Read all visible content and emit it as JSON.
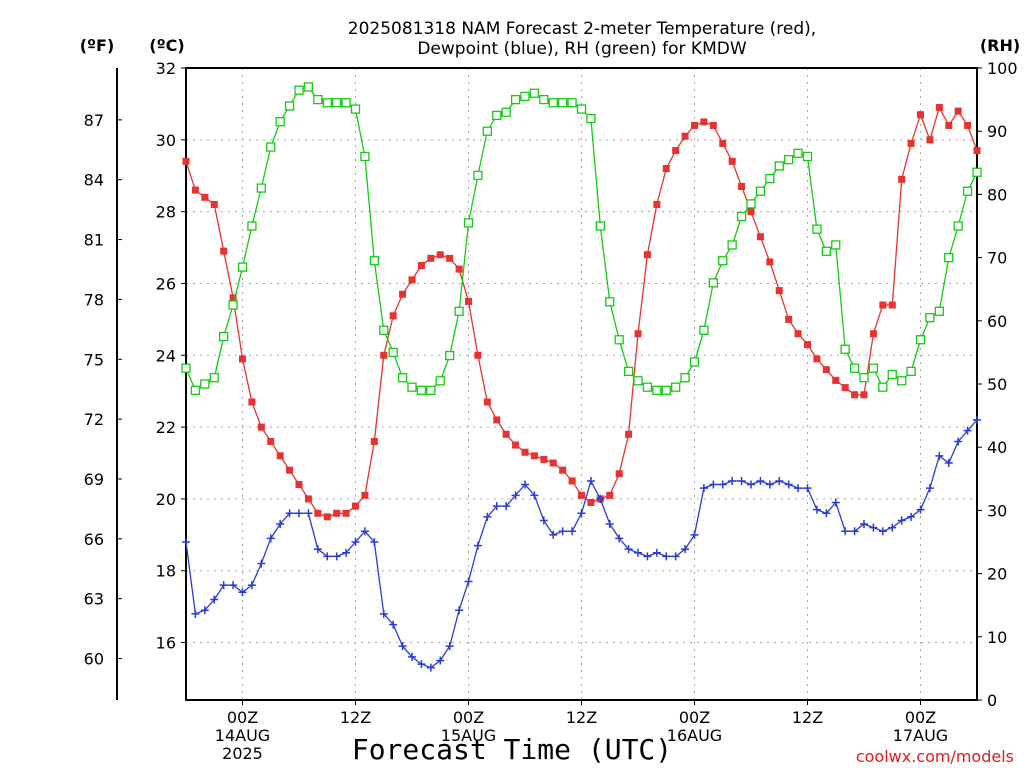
{
  "chart_data": {
    "type": "line",
    "title_lines": [
      "2025081318 NAM Forecast 2-meter Temperature (red),",
      "Dewpoint (blue), RH (green) for KMDW"
    ],
    "xlabel": "Forecast Time (UTC)",
    "credit": "coolwx.com/models",
    "unit_labels": {
      "fahrenheit": "(ºF)",
      "celsius": "(ºC)",
      "rh": "(RH)"
    },
    "x_range_hours": [
      0,
      84
    ],
    "x_step_hours": 1,
    "x_ticks": [
      {
        "hour": 6,
        "lines": [
          "00Z",
          "14AUG",
          "2025"
        ]
      },
      {
        "hour": 18,
        "lines": [
          "12Z"
        ]
      },
      {
        "hour": 30,
        "lines": [
          "00Z",
          "15AUG"
        ]
      },
      {
        "hour": 42,
        "lines": [
          "12Z"
        ]
      },
      {
        "hour": 54,
        "lines": [
          "00Z",
          "16AUG"
        ]
      },
      {
        "hour": 66,
        "lines": [
          "12Z"
        ]
      },
      {
        "hour": 78,
        "lines": [
          "00Z",
          "17AUG"
        ]
      }
    ],
    "y_celsius": {
      "range": [
        14.4,
        32
      ],
      "ticks": [
        16,
        18,
        20,
        22,
        24,
        26,
        28,
        30,
        32
      ]
    },
    "y_fahrenheit": {
      "ticks": [
        60,
        63,
        66,
        69,
        72,
        75,
        78,
        81,
        84,
        87
      ]
    },
    "y_rh": {
      "range": [
        0,
        100
      ],
      "ticks": [
        0,
        10,
        20,
        30,
        40,
        50,
        60,
        70,
        80,
        90,
        100
      ]
    },
    "grid": "dotted",
    "colors": {
      "temperature": "#e8322f",
      "dewpoint": "#2a3bd6",
      "rh": "#11cc11",
      "credit": "#e31a1c"
    },
    "series": [
      {
        "name": "Temperature",
        "axis": "celsius",
        "marker": "filled-square",
        "values": [
          29.4,
          28.6,
          28.4,
          28.2,
          26.9,
          25.6,
          23.9,
          22.7,
          22.0,
          21.6,
          21.2,
          20.8,
          20.4,
          20.0,
          19.6,
          19.5,
          19.6,
          19.6,
          19.8,
          20.1,
          21.6,
          24.0,
          25.1,
          25.7,
          26.1,
          26.5,
          26.7,
          26.8,
          26.7,
          26.4,
          25.5,
          24.0,
          22.7,
          22.2,
          21.8,
          21.5,
          21.3,
          21.2,
          21.1,
          21.0,
          20.8,
          20.5,
          20.1,
          19.9,
          20.0,
          20.1,
          20.7,
          21.8,
          24.6,
          26.8,
          28.2,
          29.2,
          29.7,
          30.1,
          30.4,
          30.5,
          30.4,
          29.9,
          29.4,
          28.7,
          28.0,
          27.3,
          26.6,
          25.8,
          25.0,
          24.6,
          24.3,
          23.9,
          23.6,
          23.3,
          23.1,
          22.9,
          22.9,
          24.6,
          25.4,
          25.4,
          28.9,
          29.9,
          30.7,
          30.0,
          30.9,
          30.4,
          30.8,
          30.4,
          29.7
        ]
      },
      {
        "name": "Dewpoint",
        "axis": "celsius",
        "marker": "plus",
        "values": [
          18.8,
          16.8,
          16.9,
          17.2,
          17.6,
          17.6,
          17.4,
          17.6,
          18.2,
          18.9,
          19.3,
          19.6,
          19.6,
          19.6,
          18.6,
          18.4,
          18.4,
          18.5,
          18.8,
          19.1,
          18.8,
          16.8,
          16.5,
          15.9,
          15.6,
          15.4,
          15.3,
          15.5,
          15.9,
          16.9,
          17.7,
          18.7,
          19.5,
          19.8,
          19.8,
          20.1,
          20.4,
          20.1,
          19.4,
          19.0,
          19.1,
          19.1,
          19.6,
          20.5,
          20.0,
          19.3,
          18.9,
          18.6,
          18.5,
          18.4,
          18.5,
          18.4,
          18.4,
          18.6,
          19.0,
          20.3,
          20.4,
          20.4,
          20.5,
          20.5,
          20.4,
          20.5,
          20.4,
          20.5,
          20.4,
          20.3,
          20.3,
          19.7,
          19.6,
          19.9,
          19.1,
          19.1,
          19.3,
          19.2,
          19.1,
          19.2,
          19.4,
          19.5,
          19.7,
          20.3,
          21.2,
          21.0,
          21.6,
          21.9,
          22.2
        ]
      },
      {
        "name": "RH",
        "axis": "rh",
        "marker": "open-square",
        "values": [
          52.5,
          49.0,
          50.0,
          51.0,
          57.5,
          62.5,
          68.5,
          75.0,
          81.0,
          87.5,
          91.5,
          94.0,
          96.5,
          97.0,
          95.0,
          94.5,
          94.5,
          94.5,
          93.5,
          86.0,
          69.5,
          58.5,
          55.0,
          51.0,
          49.5,
          49.0,
          49.0,
          50.5,
          54.5,
          61.5,
          75.5,
          83.0,
          90.0,
          92.5,
          93.0,
          95.0,
          95.5,
          96.0,
          95.0,
          94.5,
          94.5,
          94.5,
          93.5,
          92.0,
          75.0,
          63.0,
          57.0,
          52.0,
          50.5,
          49.5,
          49.0,
          49.0,
          49.5,
          51.0,
          53.5,
          58.5,
          66.0,
          69.5,
          72.0,
          76.5,
          78.5,
          80.5,
          82.5,
          84.5,
          85.5,
          86.5,
          86.0,
          74.5,
          71.0,
          72.0,
          55.5,
          52.5,
          51.0,
          52.5,
          49.5,
          51.5,
          50.5,
          52.0,
          57.0,
          60.5,
          61.5,
          70.0,
          75.0,
          80.5,
          83.5
        ]
      }
    ]
  }
}
